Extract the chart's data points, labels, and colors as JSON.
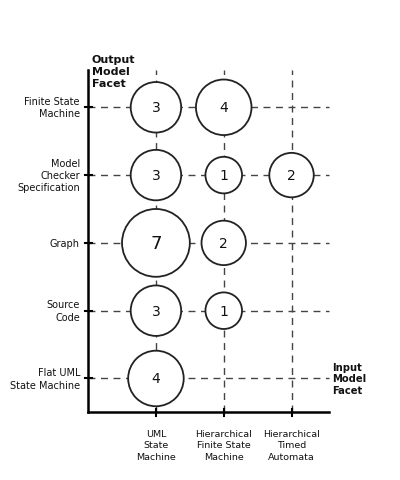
{
  "title": "Output\nModel\nFacet",
  "input_label": "Input\nModel\nFacet",
  "rows": [
    "Finite State\nMachine",
    "Model\nChecker\nSpecification",
    "Graph",
    "Source\nCode",
    "Flat UML\nState Machine"
  ],
  "cols": [
    "UML\nState\nMachine",
    "Hierarchical\nFinite State\nMachine",
    "Hierarchical\nTimed\nAutomata"
  ],
  "circles": [
    {
      "row": 0,
      "col": 0,
      "value": 3
    },
    {
      "row": 0,
      "col": 1,
      "value": 4
    },
    {
      "row": 1,
      "col": 0,
      "value": 3
    },
    {
      "row": 1,
      "col": 1,
      "value": 1
    },
    {
      "row": 1,
      "col": 2,
      "value": 2
    },
    {
      "row": 2,
      "col": 0,
      "value": 7
    },
    {
      "row": 2,
      "col": 1,
      "value": 2
    },
    {
      "row": 3,
      "col": 0,
      "value": 3
    },
    {
      "row": 3,
      "col": 1,
      "value": 1
    },
    {
      "row": 4,
      "col": 0,
      "value": 4
    }
  ],
  "max_value": 7,
  "bg_color": "#ffffff",
  "circle_color": "white",
  "circle_edge_color": "#222222",
  "line_color": "#444444",
  "text_color": "#111111"
}
